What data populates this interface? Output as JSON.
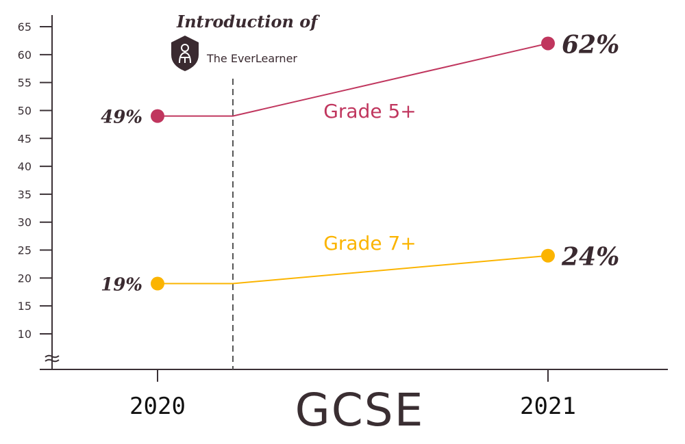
{
  "chart_data": {
    "type": "line",
    "title": "GCSE",
    "categories": [
      "2020",
      "2021"
    ],
    "yticks": [
      10,
      15,
      20,
      25,
      30,
      35,
      40,
      45,
      50,
      55,
      60,
      65
    ],
    "ylim": [
      5,
      65
    ],
    "axis_break": true,
    "grid": false,
    "series": [
      {
        "name": "Grade 5+",
        "values": [
          49,
          62
        ],
        "labels": [
          "49%",
          "62%"
        ],
        "color": "#c0365e"
      },
      {
        "name": "Grade 7+",
        "values": [
          19,
          24
        ],
        "labels": [
          "19%",
          "24%"
        ],
        "color": "#fbb400"
      }
    ],
    "annotation": {
      "text": "Introduction of",
      "brand": "The EverLearner",
      "position_between": [
        "2020",
        "2021"
      ]
    }
  }
}
